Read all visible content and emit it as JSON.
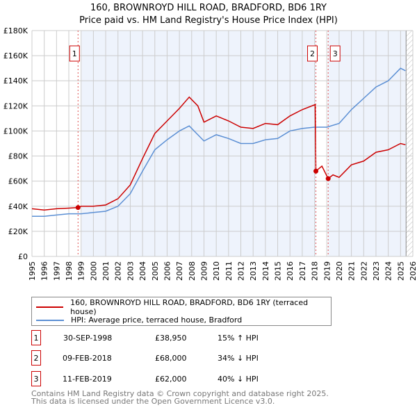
{
  "title": "160, BROWNROYD HILL ROAD, BRADFORD, BD6 1RY",
  "subtitle": "Price paid vs. HM Land Registry's House Price Index (HPI)",
  "chart_data": {
    "type": "line",
    "ylim": [
      0,
      180000
    ],
    "xlim": [
      1995,
      2026
    ],
    "y_ticks": [
      "£0",
      "£20K",
      "£40K",
      "£60K",
      "£80K",
      "£100K",
      "£120K",
      "£140K",
      "£160K",
      "£180K"
    ],
    "x_ticks": [
      "1995",
      "1996",
      "1997",
      "1998",
      "1999",
      "2000",
      "2001",
      "2002",
      "2003",
      "2004",
      "2005",
      "2006",
      "2007",
      "2008",
      "2009",
      "2010",
      "2011",
      "2012",
      "2013",
      "2014",
      "2015",
      "2016",
      "2017",
      "2018",
      "2019",
      "2020",
      "2021",
      "2022",
      "2023",
      "2024",
      "2025",
      "2026"
    ],
    "series": [
      {
        "name": "160, BROWNROYD HILL ROAD, BRADFORD, BD6 1RY (terraced house)",
        "color": "#cc0000",
        "x": [
          1995,
          1996,
          1997,
          1998,
          1998.75,
          1999,
          2000,
          2001,
          2002,
          2003,
          2004,
          2004.5,
          2005,
          2006,
          2007,
          2007.8,
          2008.5,
          2009,
          2010,
          2011,
          2012,
          2013,
          2014,
          2015,
          2016,
          2017,
          2018.05,
          2018.11,
          2018.6,
          2019.11,
          2019.5,
          2020,
          2021,
          2022,
          2023,
          2024,
          2025,
          2025.4
        ],
        "y": [
          38000,
          37000,
          38000,
          38500,
          38950,
          40000,
          40000,
          41000,
          46000,
          57000,
          78000,
          88000,
          98000,
          108000,
          118000,
          127000,
          120000,
          107000,
          112000,
          108000,
          103000,
          102000,
          106000,
          105000,
          112000,
          117000,
          121000,
          68000,
          72000,
          62000,
          65000,
          63000,
          73000,
          76000,
          83000,
          85000,
          90000,
          89000
        ]
      },
      {
        "name": "HPI: Average price, terraced house, Bradford",
        "color": "#5b8fd4",
        "x": [
          1995,
          1996,
          1997,
          1998,
          1999,
          2000,
          2001,
          2002,
          2003,
          2004,
          2005,
          2006,
          2007,
          2007.8,
          2008.5,
          2009,
          2010,
          2011,
          2012,
          2013,
          2014,
          2015,
          2016,
          2017,
          2018,
          2019,
          2020,
          2021,
          2022,
          2023,
          2024,
          2025,
          2025.4
        ],
        "y": [
          32000,
          32000,
          33000,
          34000,
          34000,
          35000,
          36000,
          40000,
          50000,
          68000,
          85000,
          93000,
          100000,
          104000,
          97000,
          92000,
          97000,
          94000,
          90000,
          90000,
          93000,
          94000,
          100000,
          102000,
          103000,
          103000,
          106000,
          117000,
          126000,
          135000,
          140000,
          150000,
          148000
        ]
      }
    ],
    "sales": [
      {
        "label": "1",
        "date": "30-SEP-1998",
        "price": "£38,950",
        "hpi": "15% ↑ HPI",
        "x": 1998.75,
        "y": 38950
      },
      {
        "label": "2",
        "date": "09-FEB-2018",
        "price": "£68,000",
        "hpi": "34% ↓ HPI",
        "x": 2018.11,
        "y": 68000
      },
      {
        "label": "3",
        "date": "11-FEB-2019",
        "price": "£62,000",
        "hpi": "40% ↓ HPI",
        "x": 2019.11,
        "y": 62000
      }
    ]
  },
  "footer1": "Contains HM Land Registry data © Crown copyright and database right 2025.",
  "footer2": "This data is licensed under the Open Government Licence v3.0."
}
